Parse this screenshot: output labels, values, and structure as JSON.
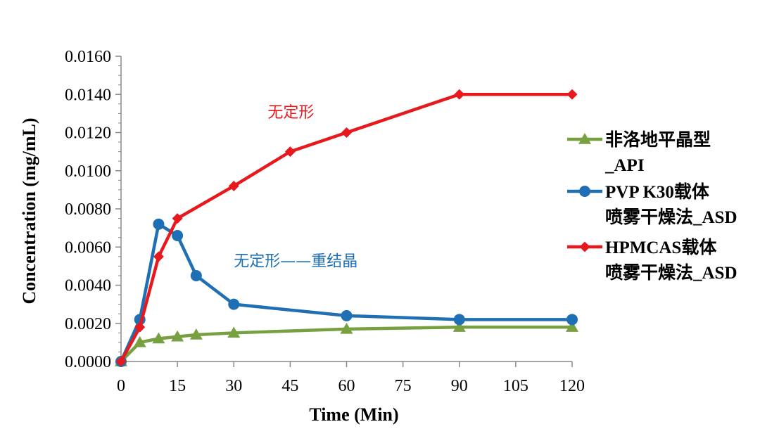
{
  "chart_data": {
    "type": "line",
    "title": "",
    "xlabel": "Time (Min)",
    "ylabel": "Concentration (mg/mL)",
    "xlim": [
      0,
      120
    ],
    "ylim": [
      0,
      0.016
    ],
    "x_ticks": [
      "0",
      "15",
      "30",
      "45",
      "60",
      "75",
      "90",
      "105",
      "120"
    ],
    "x_tick_values": [
      0,
      15,
      30,
      45,
      60,
      75,
      90,
      105,
      120
    ],
    "y_ticks": [
      "0.0000",
      "0.0020",
      "0.0040",
      "0.0060",
      "0.0080",
      "0.0100",
      "0.0120",
      "0.0140",
      "0.0160"
    ],
    "y_tick_values": [
      0,
      0.002,
      0.004,
      0.006,
      0.008,
      0.01,
      0.012,
      0.014,
      0.016
    ],
    "grid": false,
    "legend_position": "right",
    "series": [
      {
        "name": "非洛地平晶型_API",
        "legend_lines": [
          "非洛地平晶型",
          "_API"
        ],
        "color": "#77a040",
        "marker": "triangle",
        "x": [
          0,
          5,
          10,
          15,
          20,
          30,
          60,
          90,
          120
        ],
        "values": [
          0.0,
          0.001,
          0.0012,
          0.0013,
          0.0014,
          0.0015,
          0.0017,
          0.0018,
          0.0018
        ]
      },
      {
        "name": "PVP K30载体喷雾干燥法_ASD",
        "legend_lines": [
          "PVP K30载体",
          "喷雾干燥法_ASD"
        ],
        "color": "#1f6fb4",
        "marker": "circle",
        "x": [
          0,
          5,
          10,
          15,
          20,
          30,
          60,
          90,
          120
        ],
        "values": [
          0.0,
          0.0022,
          0.0072,
          0.0066,
          0.0045,
          0.003,
          0.0024,
          0.0022,
          0.0022
        ]
      },
      {
        "name": "HPMCAS载体喷雾干燥法_ASD",
        "legend_lines": [
          "HPMCAS载体",
          "喷雾干燥法_ASD"
        ],
        "color": "#e8191d",
        "marker": "diamond",
        "x": [
          0,
          5,
          10,
          15,
          30,
          45,
          60,
          90,
          120
        ],
        "values": [
          0.0,
          0.0018,
          0.0055,
          0.0075,
          0.0092,
          0.011,
          0.012,
          0.014,
          0.014
        ]
      }
    ],
    "annotations": [
      {
        "text": "无定形",
        "color": "#e8191d",
        "x": 39,
        "y": 0.0128
      },
      {
        "text": "无定形——重结晶",
        "color": "#1f6fb4",
        "x": 30,
        "y": 0.005
      }
    ]
  }
}
